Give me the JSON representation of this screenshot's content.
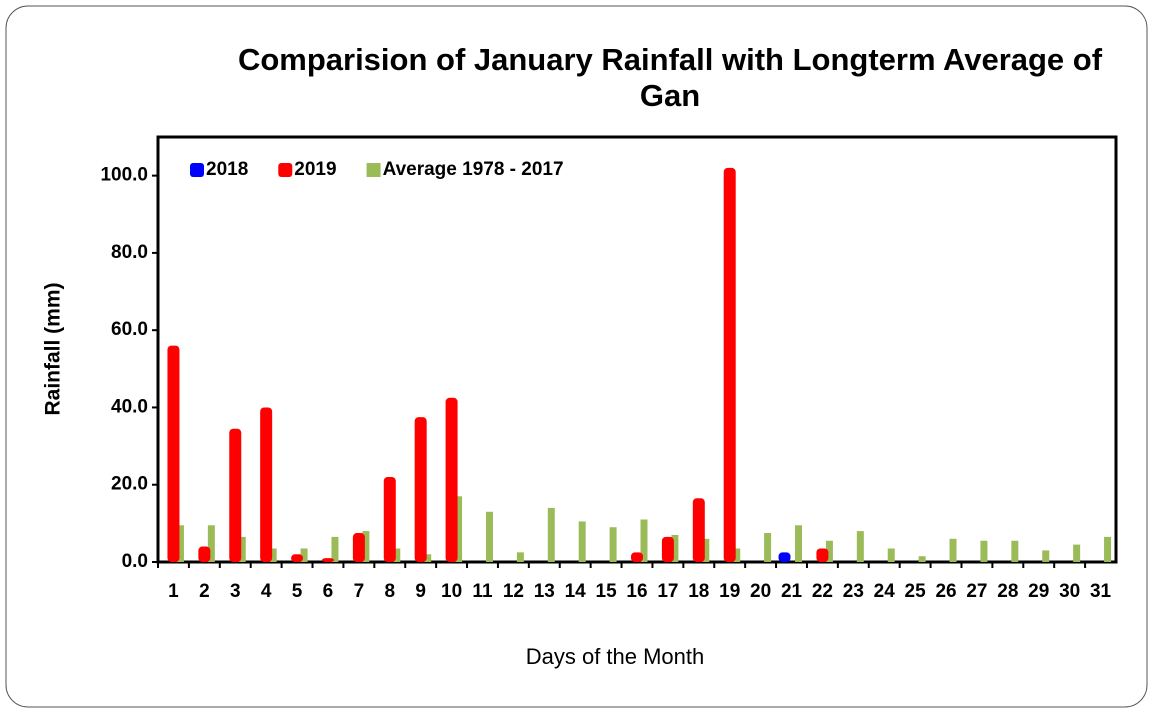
{
  "chart_data": {
    "type": "bar",
    "title": "Comparision of January Rainfall with Longterm Average of Gan",
    "x_label": "Days of the Month",
    "y_label": "Rainfall (mm)",
    "categories": [
      "1",
      "2",
      "3",
      "4",
      "5",
      "6",
      "7",
      "8",
      "9",
      "10",
      "11",
      "12",
      "13",
      "14",
      "15",
      "16",
      "17",
      "18",
      "19",
      "20",
      "21",
      "22",
      "23",
      "24",
      "25",
      "26",
      "27",
      "28",
      "29",
      "30",
      "31"
    ],
    "series": [
      {
        "name": "2018",
        "color": "#0000ff",
        "values": [
          0,
          0,
          0,
          0,
          0,
          0,
          0,
          0,
          0,
          0,
          0,
          0,
          0,
          0,
          0,
          0,
          0,
          0,
          0,
          0,
          2.5,
          0,
          0,
          0,
          0,
          0,
          0,
          0,
          0,
          0,
          0
        ]
      },
      {
        "name": "2019",
        "color": "#ff0000",
        "values": [
          56,
          4,
          34.5,
          40,
          2,
          1,
          7.5,
          22,
          37.5,
          42.5,
          0,
          0,
          0,
          0,
          0,
          2.5,
          6.5,
          16.5,
          102,
          0,
          0,
          3.5,
          0,
          0,
          0,
          0,
          0,
          0,
          0,
          0,
          0
        ]
      },
      {
        "name": "Average 1978 - 2017",
        "color": "#9bbb59",
        "values": [
          9.5,
          9.5,
          6.5,
          3.5,
          3.5,
          6.5,
          8,
          3.5,
          2,
          17,
          13,
          2.5,
          14,
          10.5,
          9,
          11,
          7,
          6,
          3.5,
          7.5,
          9.5,
          5.5,
          8,
          3.5,
          1.5,
          6,
          5.5,
          5.5,
          3,
          4.5,
          6.5
        ]
      }
    ],
    "ylim": [
      0,
      110
    ],
    "yticks": [
      {
        "value": 0,
        "label": "0.0"
      },
      {
        "value": 20,
        "label": "20.0"
      },
      {
        "value": 40,
        "label": "40.0"
      },
      {
        "value": 60,
        "label": "60.0"
      },
      {
        "value": 80,
        "label": "80.0"
      },
      {
        "value": 100,
        "label": "100.0"
      }
    ],
    "legend": "upper left"
  }
}
